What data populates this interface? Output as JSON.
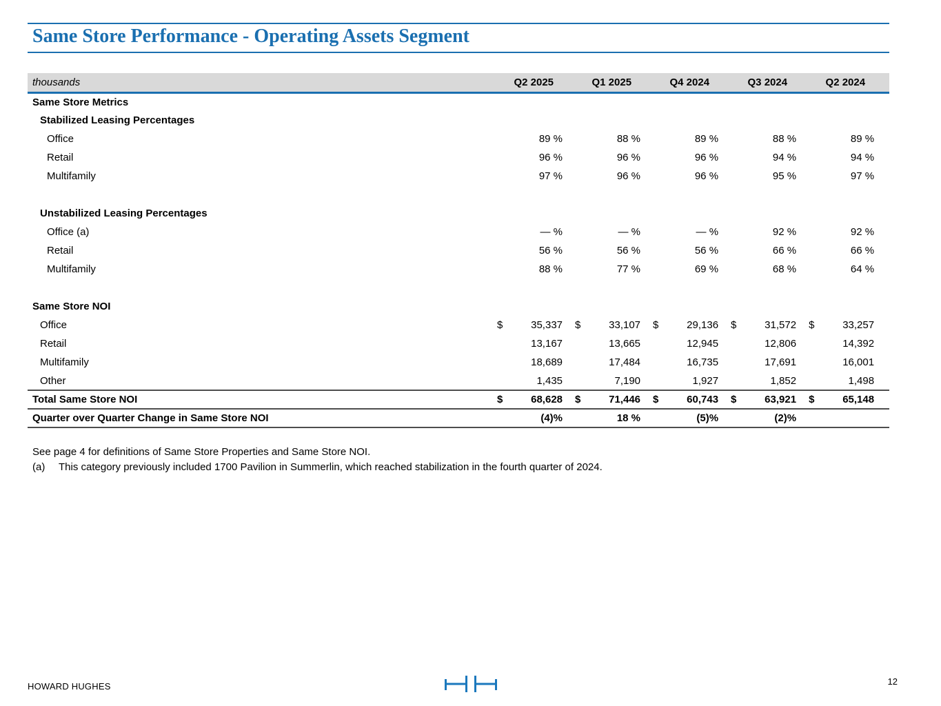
{
  "page": {
    "title": "Same Store Performance - Operating Assets Segment",
    "page_number": "12",
    "brand": "HOWARD HUGHES",
    "accent_blue": "#1a6fb0",
    "logo_blue": "#1b78bd",
    "header_band_gray": "#d9d9d9"
  },
  "table": {
    "unit_label": "thousands",
    "columns": [
      "Q2 2025",
      "Q1 2025",
      "Q4 2024",
      "Q3 2024",
      "Q2 2024"
    ],
    "rows": [
      {
        "style": "section",
        "indent": 0,
        "label": "Same Store Metrics",
        "vals": [
          "",
          "",
          "",
          "",
          ""
        ]
      },
      {
        "style": "section",
        "indent": 1,
        "label": "Stabilized Leasing Percentages",
        "vals": [
          "",
          "",
          "",
          "",
          ""
        ]
      },
      {
        "style": "data",
        "indent": 2,
        "label": "Office",
        "vals": [
          "89 %",
          "88 %",
          "89 %",
          "88 %",
          "89 %"
        ]
      },
      {
        "style": "data",
        "indent": 2,
        "label": "Retail",
        "vals": [
          "96 %",
          "96 %",
          "96 %",
          "94 %",
          "94 %"
        ]
      },
      {
        "style": "data",
        "indent": 2,
        "label": "Multifamily",
        "vals": [
          "97 %",
          "96 %",
          "96 %",
          "95 %",
          "97 %"
        ]
      },
      {
        "style": "spacer"
      },
      {
        "style": "section",
        "indent": 1,
        "label": "Unstabilized Leasing Percentages",
        "vals": [
          "",
          "",
          "",
          "",
          ""
        ]
      },
      {
        "style": "data",
        "indent": 2,
        "label": "Office (a)",
        "vals": [
          "— %",
          "— %",
          "— %",
          "92 %",
          "92 %"
        ]
      },
      {
        "style": "data",
        "indent": 2,
        "label": "Retail",
        "vals": [
          "56 %",
          "56 %",
          "56 %",
          "66 %",
          "66 %"
        ]
      },
      {
        "style": "data",
        "indent": 2,
        "label": "Multifamily",
        "vals": [
          "88 %",
          "77 %",
          "69 %",
          "68 %",
          "64 %"
        ]
      },
      {
        "style": "spacer"
      },
      {
        "style": "section",
        "indent": 0,
        "label": "Same Store NOI",
        "vals": [
          "",
          "",
          "",
          "",
          ""
        ]
      },
      {
        "style": "data",
        "indent": 1,
        "label": "Office",
        "cur": [
          "$",
          "$",
          "$",
          "$",
          "$"
        ],
        "vals": [
          "35,337",
          "33,107",
          "29,136",
          "31,572",
          "33,257"
        ]
      },
      {
        "style": "data",
        "indent": 1,
        "label": "Retail",
        "vals": [
          "13,167",
          "13,665",
          "12,945",
          "12,806",
          "14,392"
        ]
      },
      {
        "style": "data",
        "indent": 1,
        "label": "Multifamily",
        "vals": [
          "18,689",
          "17,484",
          "16,735",
          "17,691",
          "16,001"
        ]
      },
      {
        "style": "data",
        "indent": 1,
        "label": "Other",
        "vals": [
          "1,435",
          "7,190",
          "1,927",
          "1,852",
          "1,498"
        ]
      },
      {
        "style": "total",
        "indent": 0,
        "label": "Total Same Store NOI",
        "cur": [
          "$",
          "$",
          "$",
          "$",
          "$"
        ],
        "vals": [
          "68,628",
          "71,446",
          "60,743",
          "63,921",
          "65,148"
        ]
      },
      {
        "style": "qoq",
        "indent": 0,
        "label": "Quarter over Quarter Change in Same Store NOI",
        "vals": [
          "(4)%",
          "18 %",
          "(5)%",
          "(2)%",
          ""
        ]
      }
    ]
  },
  "footnotes": [
    {
      "marker": "",
      "text": "See page 4 for definitions of Same Store Properties and Same Store NOI."
    },
    {
      "marker": "(a)",
      "text": "This category previously included 1700 Pavilion in Summerlin, which reached stabilization in the fourth quarter of 2024."
    }
  ]
}
